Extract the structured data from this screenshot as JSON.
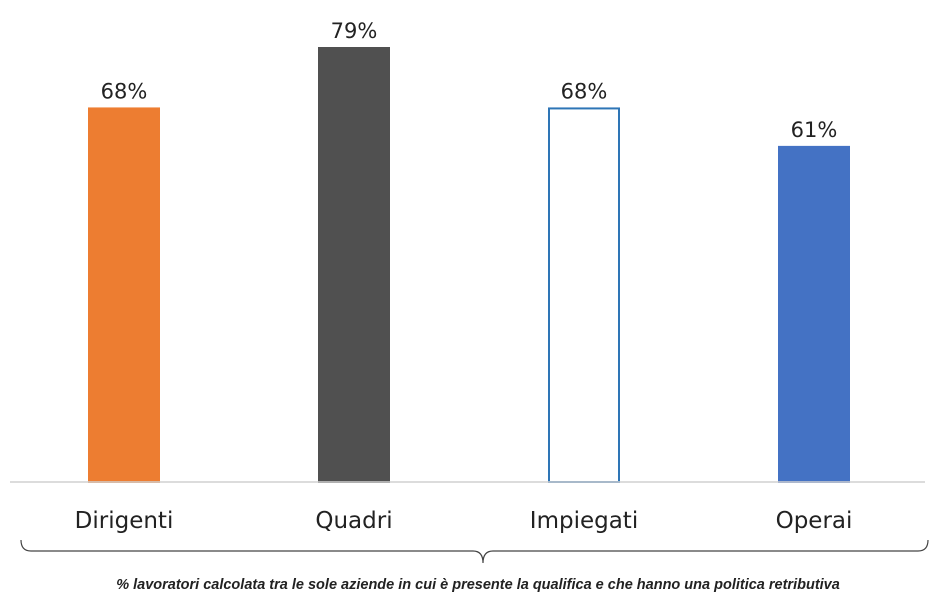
{
  "chart_data": {
    "type": "bar",
    "categories": [
      "Dirigenti",
      "Quadri",
      "Impiegati",
      "Operai"
    ],
    "values": [
      68,
      79,
      68,
      61
    ],
    "value_labels": [
      "68%",
      "79%",
      "68%",
      "61%"
    ],
    "unit": "%",
    "ylim": [
      0,
      100
    ],
    "grid": false,
    "legend": "none",
    "colors": {
      "bars": [
        "#ED7D31",
        "#505050",
        "#FFFFFF",
        "#4472C4"
      ],
      "outlines": [
        "#ED7D31",
        "#505050",
        "#2E75B6",
        "#4472C4"
      ],
      "axis": "#D0D0D0",
      "bracket": "#444444"
    }
  },
  "footnote": "% lavoratori calcolata tra le sole aziende in cui è presente la qualifica e che hanno una politica retributiva"
}
